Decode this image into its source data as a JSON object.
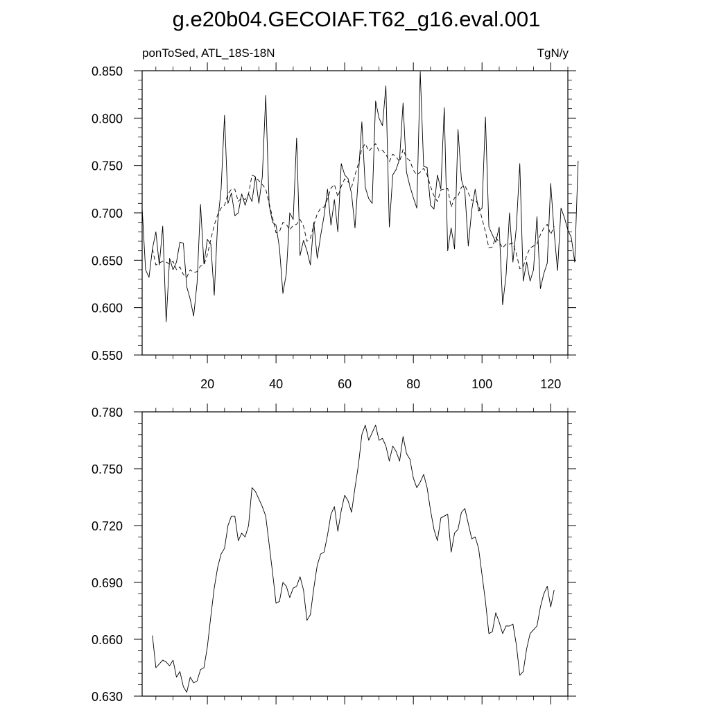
{
  "title": "g.e20b04.GECOIAF.T62_g16.eval.001",
  "chart_data": [
    {
      "type": "line",
      "left_label": "ponToSed, ATL_18S-18N",
      "right_label": "TgN/y",
      "xlim": [
        1,
        125
      ],
      "ylim": [
        0.55,
        0.85
      ],
      "x_ticks": [
        20,
        40,
        60,
        80,
        100,
        120
      ],
      "x_tick_labels": [
        "20",
        "40",
        "60",
        "80",
        "100",
        "120"
      ],
      "y_ticks": [
        0.55,
        0.6,
        0.65,
        0.7,
        0.75,
        0.8,
        0.85
      ],
      "y_tick_labels": [
        "0.550",
        "0.600",
        "0.650",
        "0.700",
        "0.750",
        "0.800",
        "0.850"
      ],
      "x_start": 1,
      "series": [
        {
          "style": "solid",
          "values": [
            0.705,
            0.64,
            0.632,
            0.662,
            0.68,
            0.645,
            0.686,
            0.585,
            0.652,
            0.64,
            0.648,
            0.669,
            0.668,
            0.622,
            0.609,
            0.591,
            0.626,
            0.709,
            0.646,
            0.672,
            0.667,
            0.613,
            0.69,
            0.725,
            0.803,
            0.71,
            0.721,
            0.697,
            0.7,
            0.72,
            0.708,
            0.72,
            0.712,
            0.738,
            0.71,
            0.738,
            0.824,
            0.708,
            0.69,
            0.687,
            0.663,
            0.615,
            0.636,
            0.7,
            0.693,
            0.779,
            0.655,
            0.671,
            0.66,
            0.645,
            0.69,
            0.652,
            0.676,
            0.697,
            0.725,
            0.687,
            0.714,
            0.68,
            0.752,
            0.74,
            0.736,
            0.72,
            0.684,
            0.74,
            0.796,
            0.727,
            0.715,
            0.71,
            0.818,
            0.8,
            0.792,
            0.834,
            0.685,
            0.74,
            0.746,
            0.757,
            0.816,
            0.743,
            0.728,
            0.716,
            0.705,
            0.849,
            0.749,
            0.748,
            0.708,
            0.704,
            0.74,
            0.725,
            0.811,
            0.66,
            0.684,
            0.662,
            0.788,
            0.735,
            0.723,
            0.665,
            0.703,
            0.725,
            0.702,
            0.705,
            0.801,
            0.685,
            0.677,
            0.669,
            0.685,
            0.603,
            0.634,
            0.7,
            0.648,
            0.685,
            0.752,
            0.628,
            0.648,
            0.628,
            0.64,
            0.696,
            0.62,
            0.636,
            0.647,
            0.731,
            0.68,
            0.639,
            0.705,
            0.695,
            0.682,
            0.674,
            0.648,
            0.755
          ]
        },
        {
          "style": "dashed",
          "x_start": 4,
          "values": [
            0.662,
            0.645,
            0.647,
            0.649,
            0.648,
            0.646,
            0.649,
            0.64,
            0.643,
            0.635,
            0.632,
            0.64,
            0.637,
            0.638,
            0.644,
            0.645,
            0.656,
            0.672,
            0.687,
            0.698,
            0.705,
            0.708,
            0.72,
            0.725,
            0.725,
            0.712,
            0.716,
            0.714,
            0.72,
            0.74,
            0.738,
            0.734,
            0.73,
            0.725,
            0.71,
            0.695,
            0.679,
            0.68,
            0.69,
            0.688,
            0.682,
            0.687,
            0.688,
            0.693,
            0.686,
            0.67,
            0.673,
            0.687,
            0.699,
            0.705,
            0.706,
            0.715,
            0.726,
            0.73,
            0.717,
            0.728,
            0.736,
            0.733,
            0.727,
            0.74,
            0.752,
            0.768,
            0.773,
            0.765,
            0.769,
            0.773,
            0.765,
            0.766,
            0.762,
            0.754,
            0.762,
            0.759,
            0.754,
            0.767,
            0.758,
            0.755,
            0.745,
            0.74,
            0.743,
            0.747,
            0.74,
            0.728,
            0.718,
            0.712,
            0.724,
            0.725,
            0.726,
            0.706,
            0.716,
            0.718,
            0.727,
            0.729,
            0.721,
            0.713,
            0.714,
            0.708,
            0.694,
            0.68,
            0.663,
            0.664,
            0.674,
            0.669,
            0.663,
            0.667,
            0.667,
            0.668,
            0.657,
            0.641,
            0.643,
            0.655,
            0.663,
            0.665,
            0.667,
            0.677,
            0.684,
            0.688,
            0.677,
            0.686
          ]
        }
      ]
    },
    {
      "type": "line",
      "xlim": [
        1,
        125
      ],
      "ylim": [
        0.63,
        0.78
      ],
      "x_ticks": [
        20,
        40,
        60,
        80,
        100,
        120
      ],
      "y_ticks": [
        0.63,
        0.66,
        0.69,
        0.72,
        0.75,
        0.78
      ],
      "y_tick_labels": [
        "0.630",
        "0.660",
        "0.690",
        "0.720",
        "0.750",
        "0.780"
      ],
      "series": [
        {
          "style": "solid",
          "x_start": 4,
          "values": [
            0.662,
            0.645,
            0.647,
            0.649,
            0.648,
            0.646,
            0.649,
            0.64,
            0.643,
            0.635,
            0.632,
            0.64,
            0.637,
            0.638,
            0.644,
            0.645,
            0.656,
            0.672,
            0.687,
            0.698,
            0.705,
            0.708,
            0.72,
            0.725,
            0.725,
            0.712,
            0.716,
            0.714,
            0.72,
            0.74,
            0.738,
            0.734,
            0.73,
            0.725,
            0.71,
            0.695,
            0.679,
            0.68,
            0.69,
            0.688,
            0.682,
            0.687,
            0.688,
            0.693,
            0.686,
            0.67,
            0.673,
            0.687,
            0.699,
            0.705,
            0.706,
            0.715,
            0.726,
            0.73,
            0.717,
            0.728,
            0.736,
            0.733,
            0.727,
            0.74,
            0.752,
            0.768,
            0.773,
            0.765,
            0.769,
            0.773,
            0.765,
            0.766,
            0.762,
            0.754,
            0.762,
            0.759,
            0.754,
            0.767,
            0.758,
            0.755,
            0.745,
            0.74,
            0.743,
            0.747,
            0.74,
            0.728,
            0.718,
            0.712,
            0.724,
            0.725,
            0.726,
            0.706,
            0.716,
            0.718,
            0.727,
            0.729,
            0.721,
            0.713,
            0.714,
            0.708,
            0.694,
            0.68,
            0.663,
            0.664,
            0.674,
            0.669,
            0.663,
            0.667,
            0.667,
            0.668,
            0.657,
            0.641,
            0.643,
            0.655,
            0.663,
            0.665,
            0.667,
            0.677,
            0.684,
            0.688,
            0.677,
            0.686
          ]
        }
      ]
    }
  ]
}
